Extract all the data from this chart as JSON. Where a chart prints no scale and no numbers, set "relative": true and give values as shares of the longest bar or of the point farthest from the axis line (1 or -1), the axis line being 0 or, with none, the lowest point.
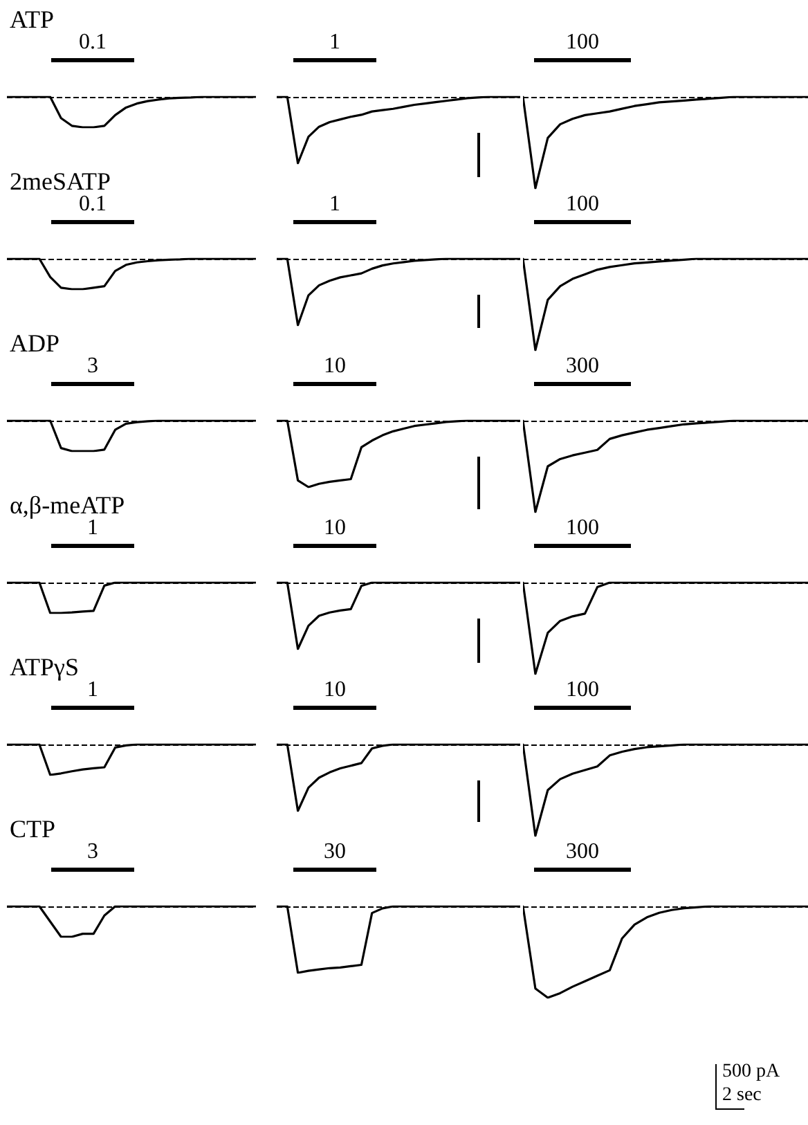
{
  "chart_data": [
    {
      "type": "line",
      "title": "ATP",
      "annotations": [
        "0.1"
      ],
      "categories": [
        null,
        null,
        null,
        null,
        null,
        null,
        null,
        null,
        null,
        null,
        null,
        null,
        null,
        null,
        null,
        null,
        null,
        null,
        null,
        null,
        null,
        null,
        null,
        null
      ],
      "color": "#000000",
      "relative": true,
      "marker": "none",
      "ref_lines": [
        {
          "axis": "y",
          "value": 0,
          "line_style": "dashed"
        }
      ],
      "values": [
        0,
        0,
        0,
        0,
        0,
        -0.7,
        -0.95,
        -1,
        -1,
        -0.95,
        -0.6,
        -0.35,
        -0.22,
        -0.14,
        -0.09,
        -0.05,
        -0.03,
        -0.02,
        0,
        0,
        0,
        0,
        0,
        0
      ]
    },
    {
      "type": "line",
      "annotations": [
        "1"
      ],
      "categories": [
        null,
        null,
        null,
        null,
        null,
        null,
        null,
        null,
        null,
        null,
        null,
        null,
        null,
        null,
        null,
        null,
        null,
        null,
        null,
        null,
        null,
        null,
        null,
        null
      ],
      "color": "#000000",
      "relative": true,
      "marker": "none",
      "ref_lines": [
        {
          "axis": "y",
          "value": 0,
          "line_style": "dashed"
        }
      ],
      "values": [
        0,
        0,
        -1,
        -0.6,
        -0.45,
        -0.38,
        -0.34,
        -0.3,
        -0.27,
        -0.22,
        -0.2,
        -0.18,
        -0.15,
        -0.12,
        -0.1,
        -0.08,
        -0.06,
        -0.04,
        -0.02,
        -0.01,
        0,
        0,
        0,
        0
      ]
    },
    {
      "type": "line",
      "annotations": [
        "100"
      ],
      "categories": [
        null,
        null,
        null,
        null,
        null,
        null,
        null,
        null,
        null,
        null,
        null,
        null,
        null,
        null,
        null,
        null,
        null,
        null,
        null,
        null,
        null,
        null,
        null,
        null
      ],
      "color": "#000000",
      "relative": true,
      "marker": "none",
      "ref_lines": [
        {
          "axis": "y",
          "value": 0,
          "line_style": "dashed"
        }
      ],
      "values": [
        0,
        -1,
        -0.45,
        -0.3,
        -0.24,
        -0.2,
        -0.18,
        -0.16,
        -0.13,
        -0.1,
        -0.08,
        -0.06,
        -0.05,
        -0.04,
        -0.03,
        -0.02,
        -0.01,
        0,
        0,
        0,
        0,
        0,
        0,
        0
      ]
    },
    {
      "type": "line",
      "title": "2meSATP",
      "annotations": [
        "0.1"
      ],
      "categories": [
        null,
        null,
        null,
        null,
        null,
        null,
        null,
        null,
        null,
        null,
        null,
        null,
        null,
        null,
        null,
        null,
        null,
        null,
        null,
        null,
        null,
        null,
        null,
        null
      ],
      "color": "#000000",
      "relative": true,
      "marker": "none",
      "ref_lines": [
        {
          "axis": "y",
          "value": 0,
          "line_style": "dashed"
        }
      ],
      "values": [
        0,
        0,
        0,
        0,
        -0.6,
        -0.95,
        -1,
        -1,
        -0.95,
        -0.9,
        -0.4,
        -0.2,
        -0.12,
        -0.08,
        -0.05,
        -0.03,
        -0.02,
        0,
        0,
        0,
        0,
        0,
        0,
        0
      ]
    },
    {
      "type": "line",
      "annotations": [
        "1"
      ],
      "categories": [
        null,
        null,
        null,
        null,
        null,
        null,
        null,
        null,
        null,
        null,
        null,
        null,
        null,
        null,
        null,
        null,
        null,
        null,
        null,
        null,
        null,
        null,
        null,
        null
      ],
      "color": "#000000",
      "relative": true,
      "marker": "none",
      "ref_lines": [
        {
          "axis": "y",
          "value": 0,
          "line_style": "dashed"
        }
      ],
      "values": [
        0,
        0,
        -1,
        -0.55,
        -0.4,
        -0.33,
        -0.28,
        -0.25,
        -0.22,
        -0.15,
        -0.1,
        -0.07,
        -0.05,
        -0.03,
        -0.02,
        -0.01,
        0,
        0,
        0,
        0,
        0,
        0,
        0,
        0
      ]
    },
    {
      "type": "line",
      "annotations": [
        "100"
      ],
      "categories": [
        null,
        null,
        null,
        null,
        null,
        null,
        null,
        null,
        null,
        null,
        null,
        null,
        null,
        null,
        null,
        null,
        null,
        null,
        null,
        null,
        null,
        null,
        null,
        null
      ],
      "color": "#000000",
      "relative": true,
      "marker": "none",
      "ref_lines": [
        {
          "axis": "y",
          "value": 0,
          "line_style": "dashed"
        }
      ],
      "values": [
        0,
        -1,
        -0.45,
        -0.3,
        -0.22,
        -0.17,
        -0.12,
        -0.09,
        -0.07,
        -0.05,
        -0.04,
        -0.03,
        -0.02,
        -0.01,
        0,
        0,
        0,
        0,
        0,
        0,
        0,
        0,
        0,
        0
      ]
    },
    {
      "type": "line",
      "title": "ADP",
      "annotations": [
        "3"
      ],
      "categories": [
        null,
        null,
        null,
        null,
        null,
        null,
        null,
        null,
        null,
        null,
        null,
        null,
        null,
        null,
        null,
        null,
        null,
        null,
        null,
        null,
        null,
        null,
        null,
        null
      ],
      "color": "#000000",
      "relative": true,
      "marker": "none",
      "ref_lines": [
        {
          "axis": "y",
          "value": 0,
          "line_style": "dashed"
        }
      ],
      "values": [
        0,
        0,
        0,
        0,
        0,
        -0.9,
        -1,
        -1,
        -1,
        -0.95,
        -0.3,
        -0.1,
        -0.05,
        -0.02,
        0,
        0,
        0,
        0,
        0,
        0,
        0,
        0,
        0,
        0
      ]
    },
    {
      "type": "line",
      "annotations": [
        "10"
      ],
      "categories": [
        null,
        null,
        null,
        null,
        null,
        null,
        null,
        null,
        null,
        null,
        null,
        null,
        null,
        null,
        null,
        null,
        null,
        null,
        null,
        null,
        null,
        null,
        null,
        null
      ],
      "color": "#000000",
      "relative": true,
      "marker": "none",
      "ref_lines": [
        {
          "axis": "y",
          "value": 0,
          "line_style": "dashed"
        }
      ],
      "values": [
        0,
        0,
        -0.9,
        -1,
        -0.95,
        -0.92,
        -0.9,
        -0.88,
        -0.4,
        -0.3,
        -0.22,
        -0.16,
        -0.12,
        -0.08,
        -0.06,
        -0.04,
        -0.02,
        -0.01,
        0,
        0,
        0,
        0,
        0,
        0
      ]
    },
    {
      "type": "line",
      "annotations": [
        "300"
      ],
      "categories": [
        null,
        null,
        null,
        null,
        null,
        null,
        null,
        null,
        null,
        null,
        null,
        null,
        null,
        null,
        null,
        null,
        null,
        null,
        null,
        null,
        null,
        null,
        null,
        null
      ],
      "color": "#000000",
      "relative": true,
      "marker": "none",
      "ref_lines": [
        {
          "axis": "y",
          "value": 0,
          "line_style": "dashed"
        }
      ],
      "values": [
        0,
        -1,
        -0.5,
        -0.42,
        -0.38,
        -0.35,
        -0.32,
        -0.2,
        -0.16,
        -0.13,
        -0.1,
        -0.08,
        -0.06,
        -0.04,
        -0.03,
        -0.02,
        -0.01,
        0,
        0,
        0,
        0,
        0,
        0,
        0
      ]
    },
    {
      "type": "line",
      "title": "α,β-meATP",
      "annotations": [
        "1"
      ],
      "categories": [
        null,
        null,
        null,
        null,
        null,
        null,
        null,
        null,
        null,
        null,
        null,
        null,
        null,
        null,
        null,
        null,
        null,
        null,
        null,
        null,
        null,
        null,
        null,
        null
      ],
      "color": "#000000",
      "relative": true,
      "marker": "none",
      "ref_lines": [
        {
          "axis": "y",
          "value": 0,
          "line_style": "dashed"
        }
      ],
      "values": [
        0,
        0,
        0,
        0,
        -1,
        -1,
        -0.98,
        -0.95,
        -0.93,
        -0.1,
        0,
        0,
        0,
        0,
        0,
        0,
        0,
        0,
        0,
        0,
        0,
        0,
        0,
        0
      ]
    },
    {
      "type": "line",
      "annotations": [
        "10"
      ],
      "categories": [
        null,
        null,
        null,
        null,
        null,
        null,
        null,
        null,
        null,
        null,
        null,
        null,
        null,
        null,
        null,
        null,
        null,
        null,
        null,
        null,
        null,
        null,
        null,
        null
      ],
      "color": "#000000",
      "relative": true,
      "marker": "none",
      "ref_lines": [
        {
          "axis": "y",
          "value": 0,
          "line_style": "dashed"
        }
      ],
      "values": [
        0,
        0,
        -1,
        -0.65,
        -0.5,
        -0.45,
        -0.42,
        -0.4,
        -0.05,
        0,
        0,
        0,
        0,
        0,
        0,
        0,
        0,
        0,
        0,
        0,
        0,
        0,
        0,
        0
      ]
    },
    {
      "type": "line",
      "annotations": [
        "100"
      ],
      "categories": [
        null,
        null,
        null,
        null,
        null,
        null,
        null,
        null,
        null,
        null,
        null,
        null,
        null,
        null,
        null,
        null,
        null,
        null,
        null,
        null,
        null,
        null,
        null,
        null
      ],
      "color": "#000000",
      "relative": true,
      "marker": "none",
      "ref_lines": [
        {
          "axis": "y",
          "value": 0,
          "line_style": "dashed"
        }
      ],
      "values": [
        0,
        -1,
        -0.55,
        -0.42,
        -0.37,
        -0.34,
        -0.05,
        0,
        0,
        0,
        0,
        0,
        0,
        0,
        0,
        0,
        0,
        0,
        0,
        0,
        0,
        0,
        0,
        0
      ]
    },
    {
      "type": "line",
      "title": "ATPγS",
      "annotations": [
        "1"
      ],
      "categories": [
        null,
        null,
        null,
        null,
        null,
        null,
        null,
        null,
        null,
        null,
        null,
        null,
        null,
        null,
        null,
        null,
        null,
        null,
        null,
        null,
        null,
        null,
        null,
        null
      ],
      "color": "#000000",
      "relative": true,
      "marker": "none",
      "ref_lines": [
        {
          "axis": "y",
          "value": 0,
          "line_style": "dashed"
        }
      ],
      "values": [
        0,
        0,
        0,
        0,
        -1,
        -0.95,
        -0.88,
        -0.82,
        -0.78,
        -0.75,
        -0.1,
        -0.03,
        0,
        0,
        0,
        0,
        0,
        0,
        0,
        0,
        0,
        0,
        0,
        0
      ]
    },
    {
      "type": "line",
      "annotations": [
        "10"
      ],
      "categories": [
        null,
        null,
        null,
        null,
        null,
        null,
        null,
        null,
        null,
        null,
        null,
        null,
        null,
        null,
        null,
        null,
        null,
        null,
        null,
        null,
        null,
        null,
        null,
        null
      ],
      "color": "#000000",
      "relative": true,
      "marker": "none",
      "ref_lines": [
        {
          "axis": "y",
          "value": 0,
          "line_style": "dashed"
        }
      ],
      "values": [
        0,
        0,
        -1,
        -0.65,
        -0.5,
        -0.42,
        -0.36,
        -0.32,
        -0.28,
        -0.06,
        -0.02,
        0,
        0,
        0,
        0,
        0,
        0,
        0,
        0,
        0,
        0,
        0,
        0,
        0
      ]
    },
    {
      "type": "line",
      "annotations": [
        "100"
      ],
      "categories": [
        null,
        null,
        null,
        null,
        null,
        null,
        null,
        null,
        null,
        null,
        null,
        null,
        null,
        null,
        null,
        null,
        null,
        null,
        null,
        null,
        null,
        null,
        null,
        null
      ],
      "color": "#000000",
      "relative": true,
      "marker": "none",
      "ref_lines": [
        {
          "axis": "y",
          "value": 0,
          "line_style": "dashed"
        }
      ],
      "values": [
        0,
        -1,
        -0.5,
        -0.38,
        -0.32,
        -0.28,
        -0.24,
        -0.12,
        -0.08,
        -0.05,
        -0.03,
        -0.02,
        -0.01,
        0,
        0,
        0,
        0,
        0,
        0,
        0,
        0,
        0,
        0,
        0
      ]
    },
    {
      "type": "line",
      "title": "CTP",
      "annotations": [
        "3"
      ],
      "categories": [
        null,
        null,
        null,
        null,
        null,
        null,
        null,
        null,
        null,
        null,
        null,
        null,
        null,
        null,
        null,
        null,
        null,
        null,
        null,
        null,
        null,
        null,
        null,
        null
      ],
      "color": "#000000",
      "relative": true,
      "marker": "none",
      "ref_lines": [
        {
          "axis": "y",
          "value": 0,
          "line_style": "dashed"
        }
      ],
      "values": [
        0,
        0,
        0,
        0,
        -0.5,
        -1,
        -1,
        -0.9,
        -0.9,
        -0.3,
        0,
        0,
        0,
        0,
        0,
        0,
        0,
        0,
        0,
        0,
        0,
        0,
        0,
        0
      ]
    },
    {
      "type": "line",
      "annotations": [
        "30",
        "500 pA",
        "2 sec"
      ],
      "categories": [
        null,
        null,
        null,
        null,
        null,
        null,
        null,
        null,
        null,
        null,
        null,
        null,
        null,
        null,
        null,
        null,
        null,
        null,
        null,
        null,
        null,
        null,
        null,
        null
      ],
      "color": "#000000",
      "relative": true,
      "marker": "none",
      "ref_lines": [
        {
          "axis": "y",
          "value": 0,
          "line_style": "dashed"
        }
      ],
      "values": [
        0,
        0,
        -1,
        -0.97,
        -0.95,
        -0.93,
        -0.92,
        -0.9,
        -0.88,
        -0.1,
        -0.03,
        0,
        0,
        0,
        0,
        0,
        0,
        0,
        0,
        0,
        0,
        0,
        0,
        0
      ]
    },
    {
      "type": "line",
      "annotations": [
        "300"
      ],
      "categories": [
        null,
        null,
        null,
        null,
        null,
        null,
        null,
        null,
        null,
        null,
        null,
        null,
        null,
        null,
        null,
        null,
        null,
        null,
        null,
        null,
        null,
        null,
        null,
        null
      ],
      "color": "#000000",
      "relative": true,
      "marker": "none",
      "ref_lines": [
        {
          "axis": "y",
          "value": 0,
          "line_style": "dashed"
        }
      ],
      "values": [
        0,
        -0.9,
        -1,
        -0.95,
        -0.88,
        -0.82,
        -0.76,
        -0.7,
        -0.35,
        -0.2,
        -0.12,
        -0.07,
        -0.04,
        -0.02,
        -0.01,
        0,
        0,
        0,
        0,
        0,
        0,
        0,
        0,
        0
      ]
    }
  ]
}
